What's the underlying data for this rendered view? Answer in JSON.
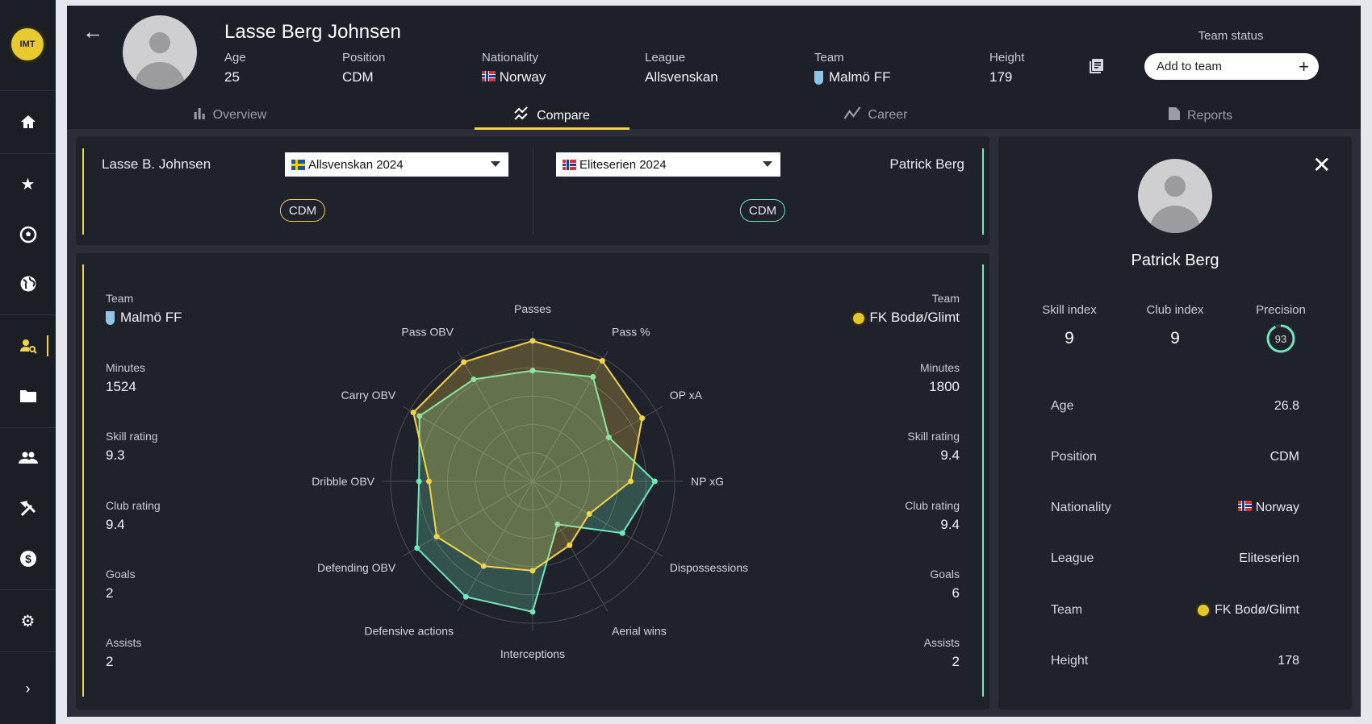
{
  "sidebar": {
    "items": [
      "home",
      "favorites",
      "matches",
      "world",
      "scouting",
      "files",
      "players",
      "tools",
      "finance",
      "settings"
    ],
    "active": "scouting",
    "expand": "expand"
  },
  "header": {
    "name": "Lasse Berg Johnsen",
    "fields": [
      {
        "label": "Age",
        "value": "25"
      },
      {
        "label": "Position",
        "value": "CDM"
      },
      {
        "label": "Nationality",
        "value": "Norway"
      },
      {
        "label": "League",
        "value": "Allsvenskan"
      },
      {
        "label": "Team",
        "value": "Malmö FF"
      },
      {
        "label": "Height",
        "value": "179"
      }
    ],
    "team_status_label": "Team status",
    "add_to_team": "Add to team"
  },
  "tabs": [
    {
      "label": "Overview"
    },
    {
      "label": "Compare"
    },
    {
      "label": "Career"
    },
    {
      "label": "Reports"
    }
  ],
  "compare": {
    "left": {
      "name": "Lasse B. Johnsen",
      "season": "Allsvenskan 2024",
      "position": "CDM",
      "stats": [
        {
          "label": "Team",
          "value": "Malmö FF"
        },
        {
          "label": "Minutes",
          "value": "1524"
        },
        {
          "label": "Skill rating",
          "value": "9.3"
        },
        {
          "label": "Club rating",
          "value": "9.4"
        },
        {
          "label": "Goals",
          "value": "2"
        },
        {
          "label": "Assists",
          "value": "2"
        }
      ]
    },
    "right": {
      "name": "Patrick Berg",
      "season": "Eliteserien 2024",
      "position": "CDM",
      "stats": [
        {
          "label": "Team",
          "value": "FK Bodø/Glimt"
        },
        {
          "label": "Minutes",
          "value": "1800"
        },
        {
          "label": "Skill rating",
          "value": "9.4"
        },
        {
          "label": "Club rating",
          "value": "9.4"
        },
        {
          "label": "Goals",
          "value": "6"
        },
        {
          "label": "Assists",
          "value": "2"
        }
      ]
    }
  },
  "chart_data": {
    "type": "radar",
    "axes": [
      "Passes",
      "Pass %",
      "OP xA",
      "NP xG",
      "Dispossessions",
      "Aerial wins",
      "Interceptions",
      "Defensive actions",
      "Defending OBV",
      "Dribble OBV",
      "Carry OBV",
      "Pass OBV"
    ],
    "range": [
      0,
      100
    ],
    "series": [
      {
        "name": "Lasse B. Johnsen",
        "color": "#f2d34a",
        "values": [
          99,
          98,
          89,
          69,
          46,
          52,
          63,
          69,
          78,
          73,
          97,
          97
        ]
      },
      {
        "name": "Patrick Berg",
        "color": "#6ee8b8",
        "values": [
          78,
          85,
          62,
          86,
          73,
          35,
          92,
          94,
          94,
          80,
          92,
          83
        ]
      }
    ]
  },
  "panel": {
    "name": "Patrick Berg",
    "indices": [
      {
        "label": "Skill index",
        "value": "9"
      },
      {
        "label": "Club index",
        "value": "9"
      },
      {
        "label": "Precision",
        "value": "93"
      }
    ],
    "precision_pct": 93,
    "rows": [
      {
        "label": "Age",
        "value": "26.8"
      },
      {
        "label": "Position",
        "value": "CDM"
      },
      {
        "label": "Nationality",
        "value": "Norway"
      },
      {
        "label": "League",
        "value": "Eliteserien"
      },
      {
        "label": "Team",
        "value": "FK Bodø/Glimt"
      },
      {
        "label": "Height",
        "value": "178"
      }
    ]
  },
  "colors": {
    "accent_yellow": "#f2d34a",
    "accent_teal": "#6ee8b8"
  }
}
